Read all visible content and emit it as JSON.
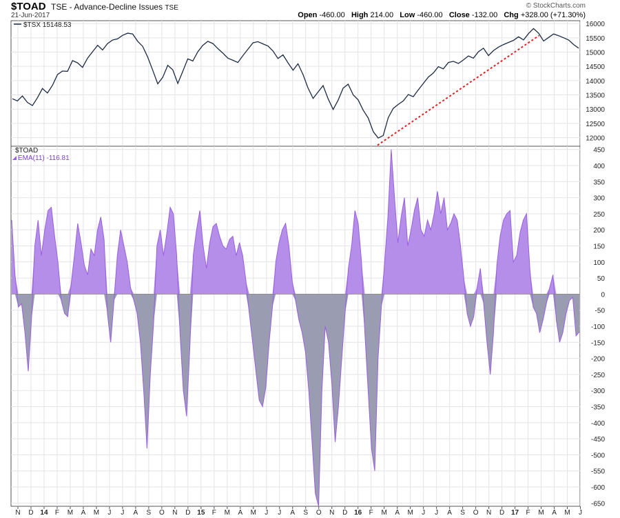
{
  "header": {
    "symbol": "$TOAD",
    "description": "TSE - Advance-Decline Issues",
    "exchange": "TSE",
    "date": "21-Jun-2017",
    "brand": "© StockCharts.com",
    "ohlc": {
      "open_label": "Open",
      "open": "-460.00",
      "high_label": "High",
      "high": "214.00",
      "low_label": "Low",
      "low": "-460.00",
      "close_label": "Close",
      "close": "-132.00",
      "chg_label": "Chg",
      "chg": "+328.00 (+71.30%)"
    }
  },
  "colors": {
    "price_line": "#1c2a44",
    "trendline": "#e02020",
    "positive_fill": "#b48ee8",
    "negative_fill": "#9a9cb2",
    "ema_line": "#9a5fe0",
    "grid": "#e3e3e8",
    "frame": "#555555"
  },
  "chart_data": [
    {
      "type": "line",
      "panel": "upper",
      "series": [
        {
          "name": "$TSX",
          "last_value": "15148.53",
          "legend": "$TSX 15148.53",
          "values": [
            13400,
            13300,
            13450,
            13200,
            13150,
            13400,
            13700,
            13600,
            13850,
            14200,
            14300,
            14350,
            14700,
            14600,
            14500,
            14800,
            15000,
            15200,
            15100,
            15300,
            15400,
            15500,
            15600,
            15650,
            15600,
            15400,
            15200,
            14800,
            14400,
            13900,
            14100,
            14500,
            14400,
            13900,
            14300,
            14800,
            14700,
            15000,
            15200,
            15400,
            15300,
            15100,
            15000,
            14800,
            14700,
            14600,
            14900,
            15100,
            15300,
            15400,
            15300,
            15200,
            15000,
            14800,
            14900,
            14600,
            14400,
            14600,
            14200,
            13700,
            13400,
            13600,
            13800,
            13400,
            13000,
            13300,
            13700,
            13900,
            13500,
            13300,
            13000,
            12700,
            12200,
            11950,
            12100,
            12700,
            13000,
            13200,
            13300,
            13500,
            13400,
            13700,
            13900,
            14100,
            14300,
            14500,
            14400,
            14600,
            14700,
            14600,
            14700,
            14900,
            14800,
            15000,
            15100,
            14900,
            15050,
            15150,
            15300,
            15350,
            15400,
            15500,
            15450,
            15650,
            15800,
            15700,
            15400,
            15500,
            15600,
            15600,
            15500,
            15400,
            15300,
            15150
          ]
        }
      ],
      "ylim": [
        11700,
        16100
      ],
      "yticks": [
        12000,
        12500,
        13000,
        13500,
        14000,
        14500,
        15000,
        15500,
        16000
      ],
      "annotations": [
        {
          "type": "trendline",
          "style": "dashed",
          "color": "#e02020",
          "from": [
            11800,
            11850
          ],
          "to": [
            15600,
            15580
          ]
        }
      ]
    },
    {
      "type": "area",
      "panel": "lower",
      "series": [
        {
          "name": "$TOAD"
        },
        {
          "name": "EMA(11)",
          "last_value": "-116.81",
          "legend": "EMA(11) -116.81",
          "values": [
            230,
            60,
            -40,
            -30,
            -120,
            -240,
            -80,
            150,
            230,
            120,
            200,
            260,
            270,
            180,
            100,
            -20,
            -60,
            -70,
            30,
            120,
            220,
            160,
            90,
            60,
            140,
            120,
            200,
            240,
            170,
            -60,
            -150,
            -20,
            120,
            200,
            150,
            100,
            20,
            -20,
            -60,
            -150,
            -300,
            -480,
            -250,
            -90,
            150,
            200,
            120,
            190,
            270,
            250,
            120,
            -120,
            -300,
            -380,
            -160,
            120,
            200,
            260,
            150,
            80,
            160,
            210,
            220,
            180,
            150,
            140,
            170,
            180,
            120,
            160,
            120,
            40,
            -60,
            -150,
            -240,
            -330,
            -350,
            -290,
            -150,
            -40,
            100,
            160,
            200,
            220,
            150,
            40,
            -20,
            -80,
            -120,
            -180,
            -300,
            -460,
            -620,
            -660,
            -300,
            -100,
            -150,
            -280,
            -460,
            -350,
            -200,
            -60,
            80,
            150,
            260,
            220,
            100,
            -120,
            -300,
            -480,
            -550,
            -200,
            -40,
            100,
            240,
            450,
            300,
            160,
            240,
            300,
            150,
            200,
            260,
            300,
            200,
            180,
            230,
            200,
            250,
            320,
            250,
            300,
            200,
            220,
            250,
            230,
            150,
            50,
            -60,
            -100,
            -70,
            20,
            80,
            -30,
            -150,
            -250,
            -120,
            90,
            180,
            230,
            250,
            260,
            100,
            120,
            190,
            230,
            250,
            80,
            -40,
            -60,
            -120,
            -80,
            -30,
            20,
            60,
            -80,
            -150,
            -120,
            -60,
            -20,
            -10,
            -130,
            -117
          ]
        }
      ],
      "ylim": [
        -660,
        460
      ],
      "yticks": [
        450,
        400,
        350,
        300,
        250,
        200,
        150,
        100,
        50,
        0,
        -50,
        -100,
        -150,
        -200,
        -250,
        -300,
        -350,
        -400,
        -450,
        -500,
        -550,
        -600,
        -650
      ],
      "fill_rule": "fill above zero purple, below zero gray-blue"
    }
  ],
  "x_axis": {
    "labels": [
      "N",
      "D",
      "14",
      "F",
      "M",
      "A",
      "M",
      "J",
      "J",
      "A",
      "S",
      "O",
      "N",
      "D",
      "15",
      "F",
      "M",
      "A",
      "M",
      "J",
      "J",
      "A",
      "S",
      "O",
      "N",
      "D",
      "16",
      "F",
      "M",
      "A",
      "M",
      "J",
      "J",
      "A",
      "S",
      "O",
      "N",
      "D",
      "17",
      "F",
      "M",
      "A",
      "M",
      "J"
    ],
    "year_labels": [
      "14",
      "15",
      "16",
      "17"
    ]
  }
}
